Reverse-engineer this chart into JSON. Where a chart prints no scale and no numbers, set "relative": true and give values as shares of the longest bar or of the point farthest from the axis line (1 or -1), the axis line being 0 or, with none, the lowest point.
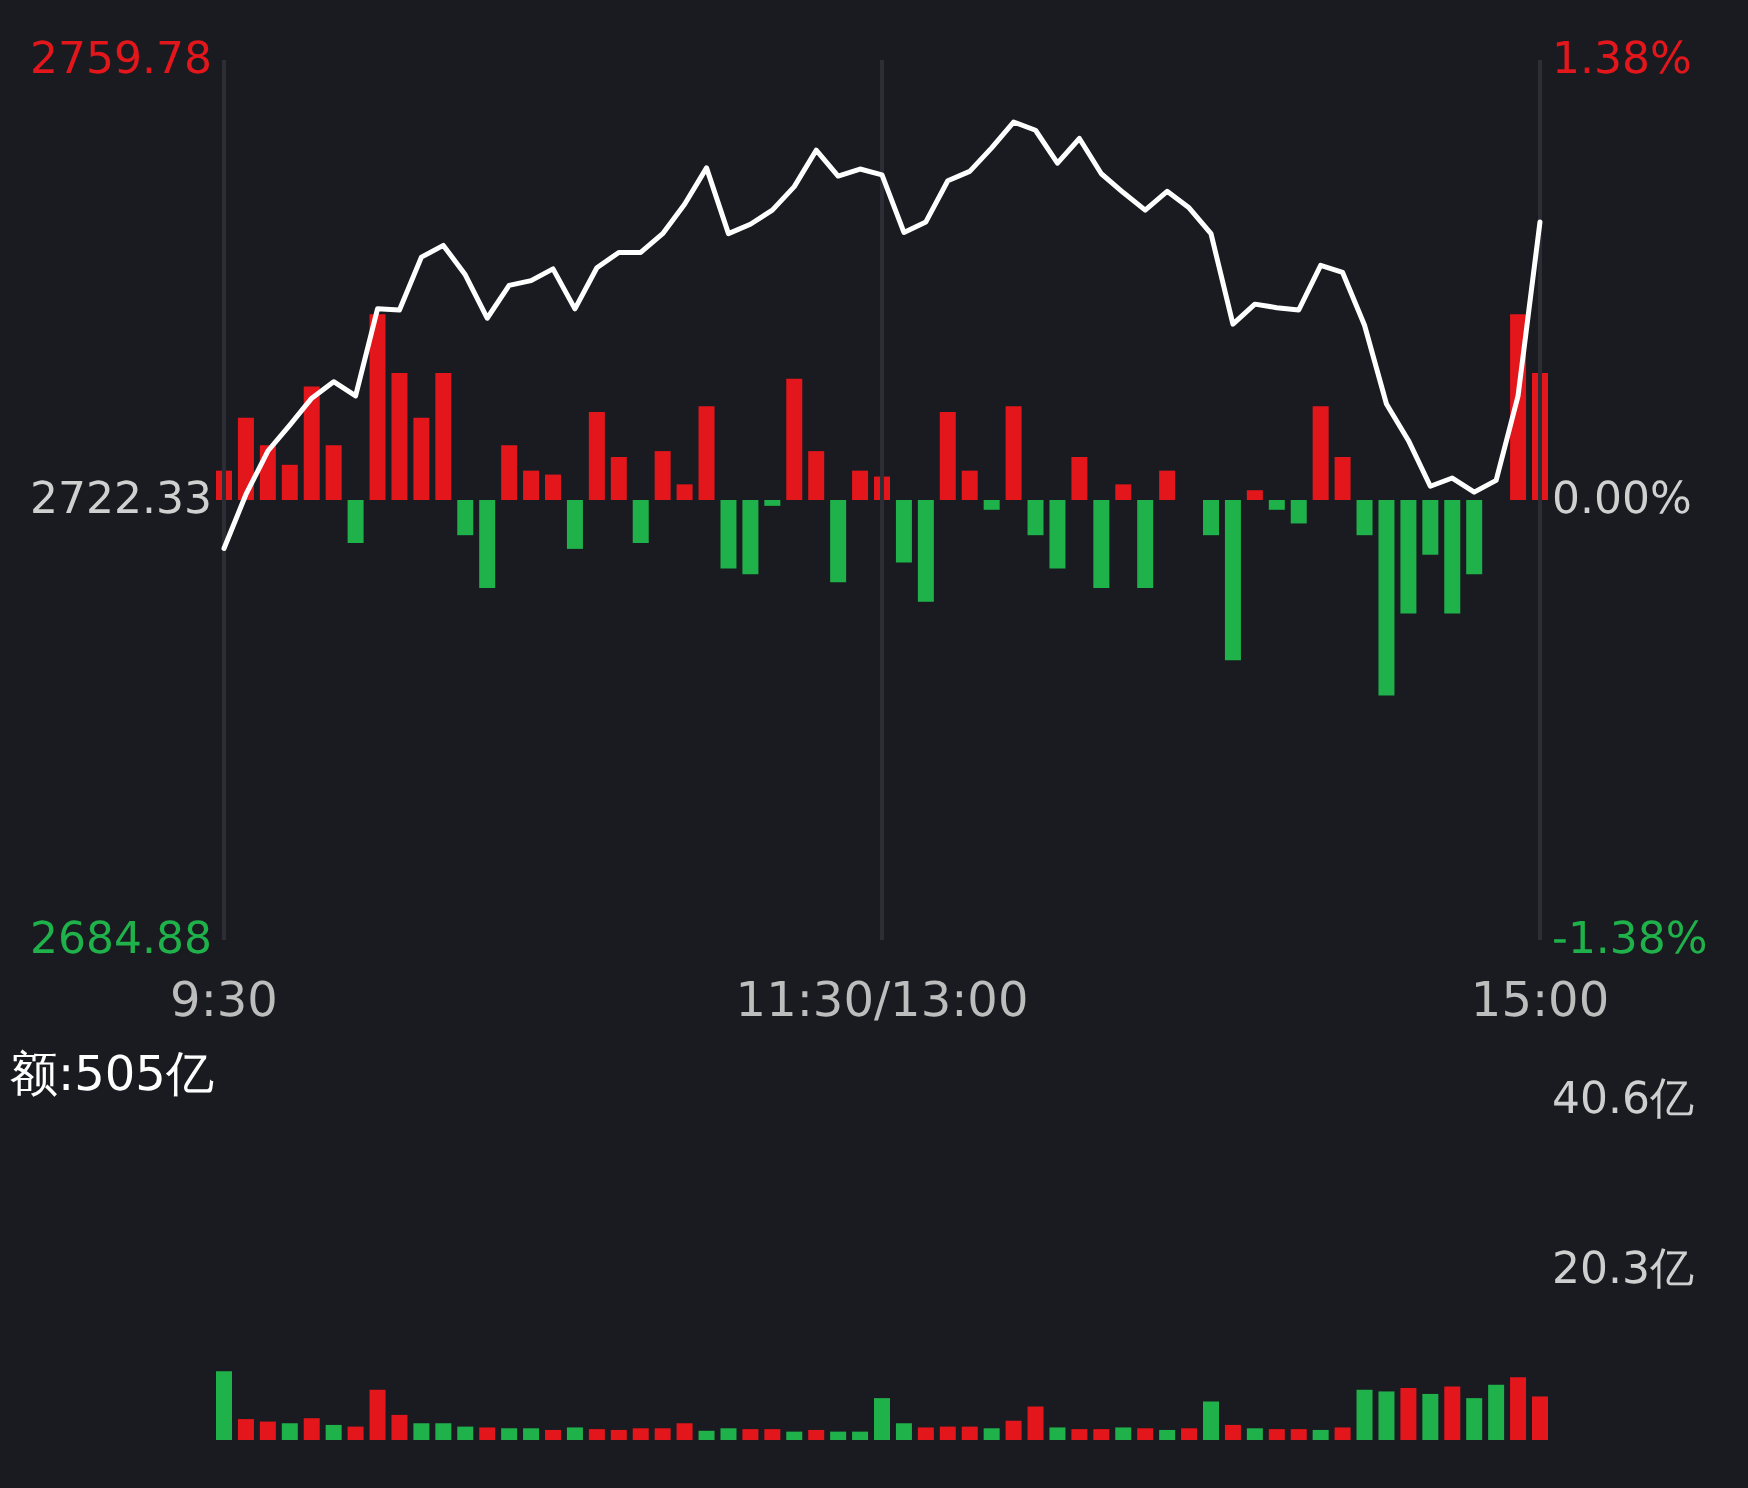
{
  "chart_data": [
    {
      "type": "line",
      "categories": [
        "9:30",
        null,
        null,
        null,
        null,
        null,
        null,
        null,
        null,
        null,
        null,
        null,
        null,
        null,
        null,
        null,
        null,
        null,
        null,
        null,
        null,
        null,
        null,
        null,
        null,
        null,
        null,
        null,
        null,
        null,
        "11:30/13:00",
        null,
        null,
        null,
        null,
        null,
        null,
        null,
        null,
        null,
        null,
        null,
        null,
        null,
        null,
        null,
        null,
        null,
        null,
        null,
        null,
        null,
        null,
        null,
        null,
        null,
        null,
        null,
        null,
        null,
        "15:00"
      ],
      "series": [
        {
          "color": "#ffffff",
          "values": [
            2718.2,
            2722.8,
            2726.5,
            2728.7,
            2731.0,
            2732.4,
            2731.2,
            2738.6,
            2738.5,
            2743.0,
            2744.0,
            2741.5,
            2737.8,
            2740.6,
            2741.0,
            2742.0,
            2738.6,
            2742.1,
            2743.4,
            2743.4,
            2745.0,
            2747.5,
            2750.6,
            2745.0,
            2745.8,
            2747.0,
            2749.0,
            2752.1,
            2749.9,
            2750.5,
            2750.0,
            2745.1,
            2746.0,
            2749.5,
            2750.3,
            2752.3,
            2754.5,
            2753.8,
            2751.0,
            2753.1,
            2750.1,
            2748.5,
            2747.0,
            2748.6,
            2747.2,
            2745.0,
            2737.3,
            2739.0,
            2738.7,
            2738.5,
            2742.3,
            2741.7,
            2737.2,
            2730.5,
            2727.4,
            2723.5,
            2724.2,
            2723.0,
            2724.0,
            2731.2,
            2746.0
          ]
        }
      ],
      "ylim": [
        2684.88,
        2759.78
      ],
      "yticks": [
        2684.88,
        2722.33,
        2759.78
      ],
      "y2lim": [
        -1.38,
        1.38
      ],
      "y2ticks": [
        {
          "value": -1.38,
          "label": "-1.38%"
        },
        {
          "value": 0,
          "label": "0.00%"
        },
        {
          "value": 1.38,
          "label": "1.38%"
        }
      ],
      "grid": "x"
    },
    {
      "type": "bar",
      "relative": true,
      "tick_labels": false,
      "categories": [
        null,
        null,
        null,
        null,
        null,
        null,
        null,
        null,
        null,
        null,
        null,
        null,
        null,
        null,
        null,
        null,
        null,
        null,
        null,
        null,
        null,
        null,
        null,
        null,
        null,
        null,
        null,
        null,
        null,
        null,
        null,
        null,
        null,
        null,
        null,
        null,
        null,
        null,
        null,
        null,
        null,
        null,
        null,
        null,
        null,
        null,
        null,
        null,
        null,
        null,
        null,
        null,
        null,
        null,
        null,
        null,
        null,
        null,
        null,
        null,
        null
      ],
      "values": [
        0.15,
        0.42,
        0.28,
        0.18,
        0.58,
        0.28,
        -0.22,
        0.95,
        0.65,
        0.42,
        0.65,
        -0.18,
        -0.45,
        0.28,
        0.15,
        0.13,
        -0.25,
        0.45,
        0.22,
        -0.22,
        0.25,
        0.08,
        0.48,
        -0.35,
        -0.38,
        -0.03,
        0.62,
        0.25,
        -0.42,
        0.15,
        0.12,
        -0.32,
        -0.52,
        0.45,
        0.15,
        -0.05,
        0.48,
        -0.18,
        -0.35,
        0.22,
        -0.45,
        0.08,
        -0.45,
        0.15,
        null,
        -0.18,
        -0.82,
        0.05,
        -0.05,
        -0.12,
        0.48,
        0.22,
        -0.18,
        -1,
        -0.58,
        -0.28,
        -0.58,
        -0.38,
        null,
        0.95,
        0.65
      ],
      "colors": [
        "#e3161b",
        "#e3161b",
        "#e3161b",
        "#e3161b",
        "#e3161b",
        "#e3161b",
        "#1fb14a",
        "#e3161b",
        "#e3161b",
        "#e3161b",
        "#e3161b",
        "#1fb14a",
        "#1fb14a",
        "#e3161b",
        "#e3161b",
        "#e3161b",
        "#1fb14a",
        "#e3161b",
        "#e3161b",
        "#1fb14a",
        "#e3161b",
        "#e3161b",
        "#e3161b",
        "#1fb14a",
        "#1fb14a",
        "#1fb14a",
        "#e3161b",
        "#e3161b",
        "#1fb14a",
        "#e3161b",
        "#e3161b",
        "#1fb14a",
        "#1fb14a",
        "#e3161b",
        "#e3161b",
        "#1fb14a",
        "#e3161b",
        "#1fb14a",
        "#1fb14a",
        "#e3161b",
        "#1fb14a",
        "#e3161b",
        "#1fb14a",
        "#e3161b",
        "#1fb14a",
        "#1fb14a",
        "#1fb14a",
        "#e3161b",
        "#1fb14a",
        "#1fb14a",
        "#e3161b",
        "#e3161b",
        "#1fb14a",
        "#1fb14a",
        "#1fb14a",
        "#1fb14a",
        "#1fb14a",
        "#1fb14a",
        "#1fb14a",
        "#e3161b",
        "#e3161b"
      ]
    },
    {
      "type": "bar",
      "title": "额:505亿",
      "tick_labels": "y",
      "categories": [
        null,
        null,
        null,
        null,
        null,
        null,
        null,
        null,
        null,
        null,
        null,
        null,
        null,
        null,
        null,
        null,
        null,
        null,
        null,
        null,
        null,
        null,
        null,
        null,
        null,
        null,
        null,
        null,
        null,
        null,
        null,
        null,
        null,
        null,
        null,
        null,
        null,
        null,
        null,
        null,
        null,
        null,
        null,
        null,
        null,
        null,
        null,
        null,
        null,
        null,
        null,
        null,
        null,
        null,
        null,
        null,
        null,
        null,
        null,
        null,
        null
      ],
      "ylim": [
        0,
        40.6
      ],
      "yticks": [
        {
          "value": 20.3,
          "label": "20.3亿"
        },
        {
          "value": 40.6,
          "label": "40.6亿"
        }
      ],
      "values": [
        8.2,
        2.5,
        2.2,
        2.0,
        2.6,
        1.8,
        1.6,
        6.0,
        3.0,
        2.0,
        2.0,
        1.6,
        1.5,
        1.4,
        1.4,
        1.2,
        1.5,
        1.3,
        1.2,
        1.4,
        1.4,
        2.0,
        1.1,
        1.4,
        1.3,
        1.3,
        1.0,
        1.2,
        1.0,
        1.0,
        5.0,
        2.0,
        1.5,
        1.6,
        1.6,
        1.4,
        2.3,
        4.0,
        1.5,
        1.3,
        1.3,
        1.5,
        1.4,
        1.2,
        1.4,
        4.6,
        1.8,
        1.4,
        1.3,
        1.3,
        1.2,
        1.5,
        6.0,
        5.8,
        6.2,
        5.5,
        6.4,
        5.0,
        6.6,
        7.5,
        5.2
      ],
      "colors": [
        "#1fb14a",
        "#e3161b",
        "#e3161b",
        "#1fb14a",
        "#e3161b",
        "#1fb14a",
        "#e3161b",
        "#e3161b",
        "#e3161b",
        "#1fb14a",
        "#1fb14a",
        "#1fb14a",
        "#e3161b",
        "#1fb14a",
        "#1fb14a",
        "#e3161b",
        "#1fb14a",
        "#e3161b",
        "#e3161b",
        "#e3161b",
        "#e3161b",
        "#e3161b",
        "#1fb14a",
        "#1fb14a",
        "#e3161b",
        "#e3161b",
        "#1fb14a",
        "#e3161b",
        "#1fb14a",
        "#1fb14a",
        "#1fb14a",
        "#1fb14a",
        "#e3161b",
        "#e3161b",
        "#e3161b",
        "#1fb14a",
        "#e3161b",
        "#e3161b",
        "#1fb14a",
        "#e3161b",
        "#e3161b",
        "#1fb14a",
        "#e3161b",
        "#1fb14a",
        "#e3161b",
        "#1fb14a",
        "#e3161b",
        "#1fb14a",
        "#e3161b",
        "#e3161b",
        "#1fb14a",
        "#e3161b",
        "#1fb14a",
        "#1fb14a",
        "#e3161b",
        "#1fb14a",
        "#e3161b",
        "#1fb14a",
        "#1fb14a",
        "#e3161b",
        "#e3161b"
      ]
    }
  ]
}
